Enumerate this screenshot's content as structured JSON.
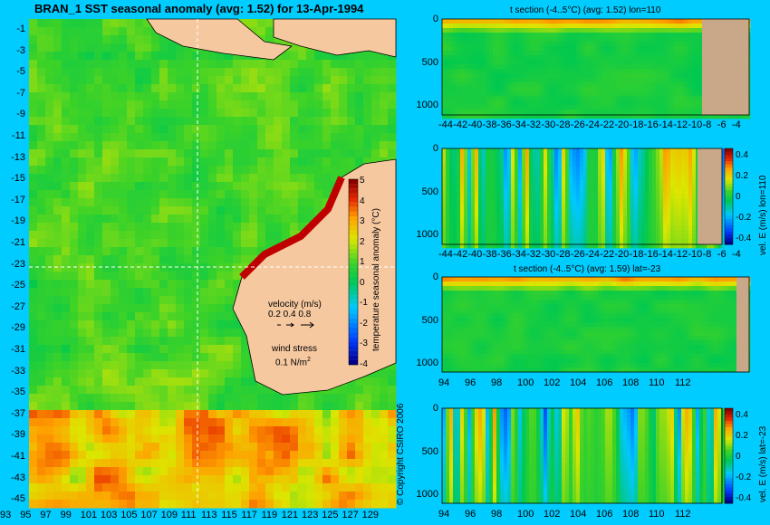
{
  "main_map": {
    "title": "BRAN_1  SST seasonal anomaly (avg: 1.52) for 13-Apr-1994",
    "lat_ticks": [
      "-1",
      "-3",
      "-5",
      "-7",
      "-9",
      "-11",
      "-13",
      "-15",
      "-17",
      "-19",
      "-21",
      "-23",
      "-25",
      "-27",
      "-29",
      "-31",
      "-33",
      "-35",
      "-37",
      "-39",
      "-41",
      "-43",
      "-45"
    ],
    "lon_ticks": [
      "93",
      "95",
      "97",
      "99",
      "101",
      "103",
      "105",
      "107",
      "109",
      "111",
      "113",
      "115",
      "117",
      "119",
      "121",
      "123",
      "125",
      "127",
      "129"
    ],
    "colorbar_label": "temperature seasonal anomaly (°C)",
    "colorbar_ticks": [
      "5",
      "4",
      "3",
      "2",
      "1",
      "0",
      "-1",
      "-2",
      "-3",
      "-4"
    ],
    "velocity_label": "velocity (m/s)",
    "velocity_scale": "0.2 0.4 0.8",
    "wind_label": "wind stress",
    "wind_scale": "0.1 N/m",
    "wind_scale_sup": "2",
    "copyright": "© Copyright CSIRO 2006"
  },
  "panels": [
    {
      "title": "t section (-4..5°C)  (avg: 1.52) lon=110",
      "x_ticks": [
        "-44",
        "-42",
        "-40",
        "-38",
        "-36",
        "-34",
        "-32",
        "-30",
        "-28",
        "-26",
        "-24",
        "-22",
        "-20",
        "-18",
        "-16",
        "-14",
        "-12",
        "-10",
        "-8",
        "-6",
        "-4"
      ],
      "y_ticks": [
        "0",
        "500",
        "1000"
      ],
      "colorbar": false
    },
    {
      "title": "",
      "x_ticks": [
        "-44",
        "-42",
        "-40",
        "-38",
        "-36",
        "-34",
        "-32",
        "-30",
        "-28",
        "-26",
        "-24",
        "-22",
        "-20",
        "-18",
        "-16",
        "-14",
        "-12",
        "-10",
        "-8",
        "-6",
        "-4"
      ],
      "y_ticks": [
        "0",
        "500",
        "1000"
      ],
      "colorbar": true,
      "colorbar_ticks": [
        "0.4",
        "0.2",
        "0",
        "-0.2",
        "-0.4"
      ],
      "colorbar_label": "vel. E (m/s) lon=110"
    },
    {
      "title": "t section (-4..5°C)  (avg: 1.59) lat=-23",
      "x_ticks": [
        "94",
        "96",
        "98",
        "100",
        "102",
        "104",
        "106",
        "108",
        "110",
        "112"
      ],
      "y_ticks": [
        "0",
        "500",
        "1000"
      ],
      "colorbar": false
    },
    {
      "title": "",
      "x_ticks": [
        "94",
        "96",
        "98",
        "100",
        "102",
        "104",
        "106",
        "108",
        "110",
        "112"
      ],
      "y_ticks": [
        "0",
        "500",
        "1000"
      ],
      "colorbar": true,
      "colorbar_ticks": [
        "0.4",
        "0.2",
        "0",
        "-0.2",
        "-0.4"
      ],
      "colorbar_label": "vel. E (m/s) lat=-23"
    }
  ],
  "chart_data": [
    {
      "type": "heatmap",
      "title": "BRAN_1  SST seasonal anomaly (avg: 1.52) for 13-Apr-1994",
      "x_range": [
        93,
        130
      ],
      "y_range": [
        -45,
        0
      ],
      "value_range": [
        -4,
        5
      ],
      "units": "°C",
      "avg": 1.52
    },
    {
      "type": "heatmap",
      "title": "t section (-4..5°C)  (avg: 1.52) lon=110",
      "x_range": [
        -45,
        -3
      ],
      "y_range": [
        1050,
        0
      ],
      "avg": 1.52
    },
    {
      "type": "heatmap",
      "title": "vel. E (m/s) lon=110",
      "x_range": [
        -45,
        -3
      ],
      "y_range": [
        1050,
        0
      ],
      "value_range": [
        -0.4,
        0.4
      ]
    },
    {
      "type": "heatmap",
      "title": "t section (-4..5°C)  (avg: 1.59) lat=-23",
      "x_range": [
        93,
        114
      ],
      "y_range": [
        1050,
        0
      ],
      "avg": 1.59
    },
    {
      "type": "heatmap",
      "title": "vel. E (m/s) lat=-23",
      "x_range": [
        93,
        114
      ],
      "y_range": [
        1050,
        0
      ],
      "value_range": [
        -0.4,
        0.4
      ]
    }
  ],
  "colors": {
    "background": "#00ccff",
    "land": "#f5c8a0",
    "land_section": "#c8a888"
  }
}
